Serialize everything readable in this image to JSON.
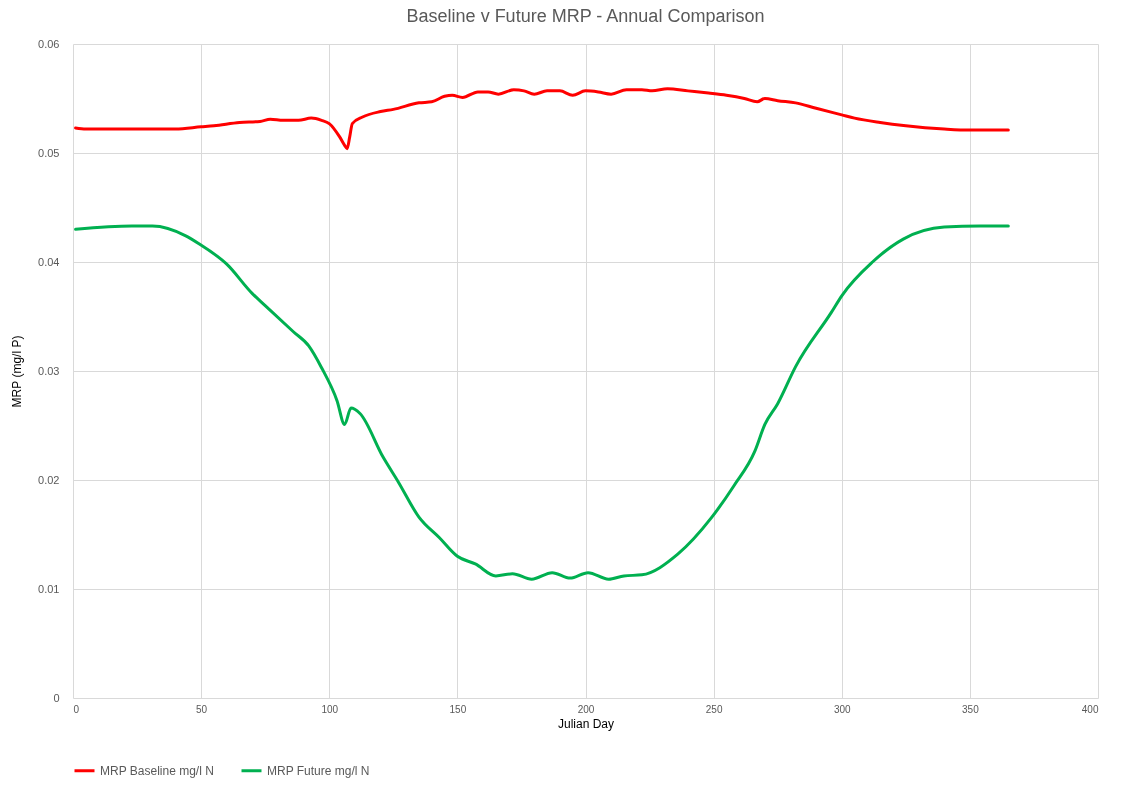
{
  "chart_data": {
    "type": "line",
    "title": "Baseline v Future MRP - Annual Comparison",
    "xlabel": "Julian Day",
    "ylabel": "MRP (mg/l P)",
    "xlim": [
      0,
      400
    ],
    "xticks": [
      0,
      50,
      100,
      150,
      200,
      250,
      300,
      350,
      400
    ],
    "ylim": [
      0,
      0.06
    ],
    "yticks": [
      0,
      0.01,
      0.02,
      0.03,
      0.04,
      0.05,
      0.06
    ],
    "grid": true,
    "legend": "bottom",
    "line_style": "solid",
    "series": [
      {
        "name": "MRP Baseline mg/l N",
        "color": "#ff0000",
        "x": [
          1,
          5,
          20,
          30,
          40,
          50,
          55,
          65,
          73,
          77,
          82,
          88,
          93,
          97,
          100,
          104,
          106,
          107,
          108,
          109,
          113,
          120,
          125,
          135,
          140,
          145,
          148,
          152,
          158,
          162,
          166,
          172,
          176,
          180,
          185,
          190,
          195,
          200,
          205,
          210,
          216,
          222,
          226,
          232,
          240,
          248,
          255,
          262,
          267,
          270,
          275,
          282,
          290,
          300,
          305,
          315,
          325,
          340,
          350,
          365
        ],
        "values": [
          0.0523,
          0.0522,
          0.0522,
          0.0522,
          0.0522,
          0.0524,
          0.0525,
          0.0528,
          0.0529,
          0.0531,
          0.053,
          0.053,
          0.0532,
          0.053,
          0.0527,
          0.0515,
          0.0507,
          0.0504,
          0.0515,
          0.0527,
          0.0533,
          0.0538,
          0.054,
          0.0546,
          0.0547,
          0.0552,
          0.0553,
          0.0551,
          0.0556,
          0.0556,
          0.0554,
          0.0558,
          0.0557,
          0.0554,
          0.0557,
          0.0557,
          0.0553,
          0.0557,
          0.0556,
          0.0554,
          0.0558,
          0.0558,
          0.0557,
          0.0559,
          0.0557,
          0.0555,
          0.0553,
          0.055,
          0.0547,
          0.055,
          0.0548,
          0.0546,
          0.0541,
          0.0535,
          0.0532,
          0.0528,
          0.0525,
          0.0522,
          0.0521,
          0.0521
        ]
      },
      {
        "name": "MRP Future mg/l N",
        "color": "#00b050",
        "x": [
          1,
          23,
          31,
          44,
          49,
          60,
          70,
          75,
          86,
          92,
          97,
          103,
          106,
          108.5,
          112,
          121,
          127,
          135,
          143,
          150,
          157,
          165,
          171.5,
          179,
          187,
          194,
          201,
          209,
          215,
          222,
          236,
          249,
          258,
          266,
          270,
          275,
          282,
          296,
          300,
          312,
          324,
          340,
          354,
          365
        ],
        "values": [
          0.043,
          0.0433,
          0.0433,
          0.0424,
          0.0417,
          0.0398,
          0.0371,
          0.036,
          0.0336,
          0.0323,
          0.0303,
          0.0273,
          0.0251,
          0.0266,
          0.0261,
          0.0221,
          0.0198,
          0.0166,
          0.0147,
          0.013,
          0.0123,
          0.0112,
          0.0114,
          0.0109,
          0.0115,
          0.011,
          0.0115,
          0.0109,
          0.0112,
          0.0113,
          0.0132,
          0.0165,
          0.0195,
          0.0226,
          0.0251,
          0.027,
          0.0304,
          0.0354,
          0.0369,
          0.04,
          0.0421,
          0.0432,
          0.0433,
          0.0433
        ]
      }
    ]
  }
}
